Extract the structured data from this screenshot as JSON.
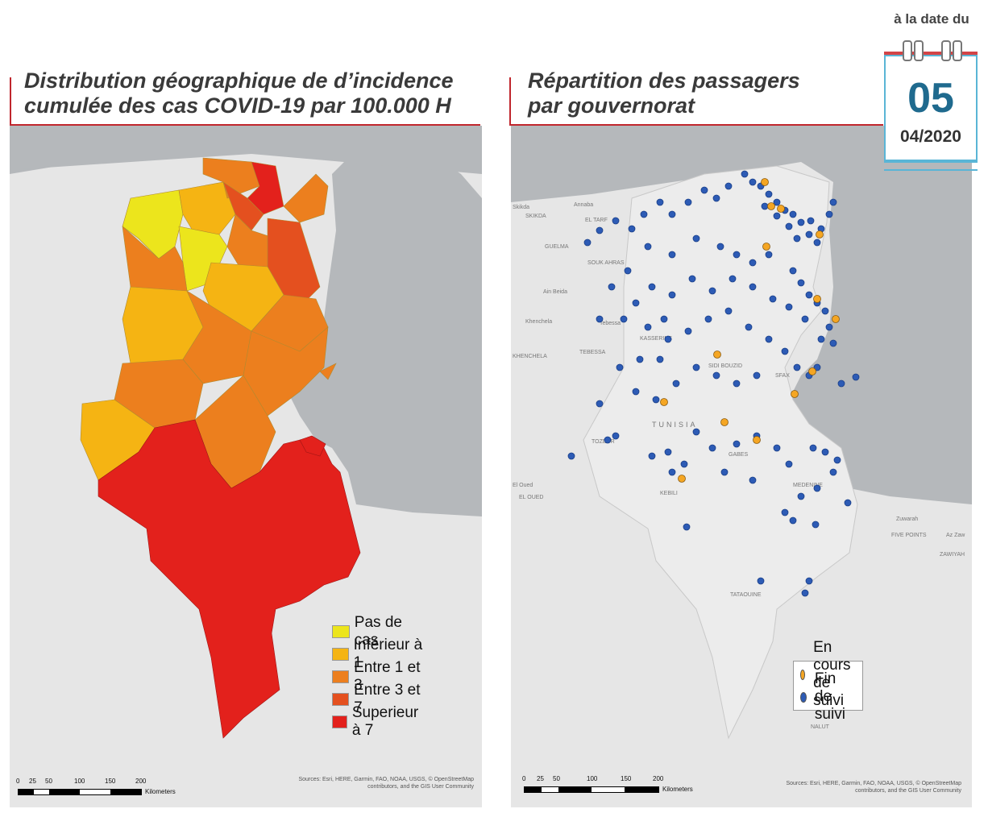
{
  "left_panel": {
    "title_line1": "Distribution géographique de d’incidence",
    "title_line2": "cumulée des cas COVID-19 par 100.000 H",
    "legend": [
      {
        "label": "Pas de cas",
        "color": "#ece51c"
      },
      {
        "label": "Inférieur à 1",
        "color": "#f5b413"
      },
      {
        "label": "Entre 1 et 3",
        "color": "#ec7f1e"
      },
      {
        "label": "Entre 3 et 7",
        "color": "#e4501f"
      },
      {
        "label": "Superieur à 7",
        "color": "#e3211c"
      }
    ],
    "scale_ticks": [
      "0",
      "25",
      "50",
      "100",
      "150",
      "200"
    ],
    "scale_unit": "Kilometers",
    "credits_line1": "Sources: Esri, HERE, Garmin, FAO, NOAA, USGS, © OpenStreetMap",
    "credits_line2": "contributors, and the GIS User Community"
  },
  "right_panel": {
    "title_line1": "Répartition des passagers",
    "title_line2": "par gouvernorat",
    "legend": [
      {
        "label": "En cours de suivi",
        "color": "#f5a623"
      },
      {
        "label": "Fin de suivi",
        "color": "#2d5bb5"
      }
    ],
    "map_labels": [
      "Annaba",
      "SKIKDA",
      "EL TARF",
      "GUELMA",
      "SOUK AHRAS",
      "Ain Beida",
      "Khenchela",
      "Tebessa",
      "KHENCHELA",
      "TEBESSA",
      "KASSERINE",
      "SIDI BOUZID",
      "SFAX",
      "TUNISIA",
      "TOZEUR",
      "GABES",
      "KEBILI",
      "MEDENINE",
      "TATAOUINE",
      "El Oued",
      "EL OUED",
      "Zuwarah",
      "Az Zaw",
      "FIVE POINTS",
      "ZAWIYAH",
      "NALUT",
      "Skikda"
    ],
    "scale_ticks": [
      "0",
      "25",
      "50",
      "100",
      "150",
      "200"
    ],
    "scale_unit": "Kilometers",
    "credits_line1": "Sources: Esri, HERE, Garmin, FAO, NOAA, USGS, © OpenStreetMap",
    "credits_line2": "contributors, and the GIS User Community"
  },
  "calendar": {
    "label": "à la date du",
    "day": "05",
    "month_year": "04/2020"
  },
  "colors": {
    "accent_red": "#c0262d",
    "sea": "#b5b8bb",
    "land": "#e6e6e6",
    "calendar_blue": "#1f6a8e"
  }
}
